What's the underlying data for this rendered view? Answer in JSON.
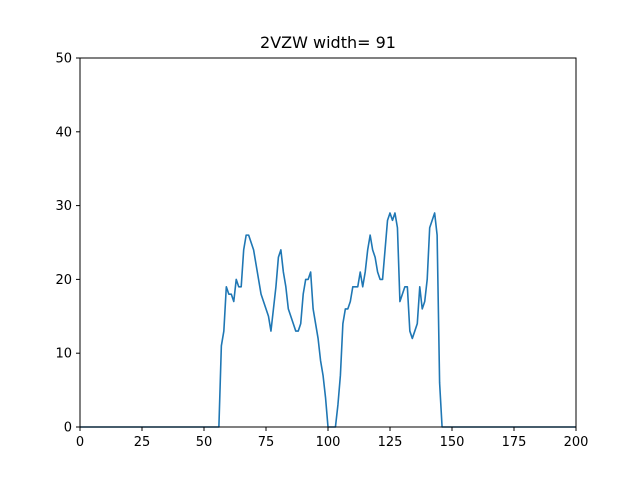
{
  "chart_data": {
    "type": "line",
    "title": "2VZW width= 91",
    "xlabel": "",
    "ylabel": "",
    "xlim": [
      0,
      200
    ],
    "ylim": [
      0,
      50
    ],
    "x_ticks": [
      0,
      25,
      50,
      75,
      100,
      125,
      150,
      175,
      200
    ],
    "y_ticks": [
      0,
      10,
      20,
      30,
      40,
      50
    ],
    "grid": false,
    "series": [
      {
        "color": "#1f77b4",
        "points": [
          [
            0,
            0
          ],
          [
            56,
            0
          ],
          [
            57,
            11
          ],
          [
            58,
            13
          ],
          [
            59,
            19
          ],
          [
            60,
            18
          ],
          [
            61,
            18
          ],
          [
            62,
            17
          ],
          [
            63,
            20
          ],
          [
            64,
            19
          ],
          [
            65,
            19
          ],
          [
            66,
            24
          ],
          [
            67,
            26
          ],
          [
            68,
            26
          ],
          [
            69,
            25
          ],
          [
            70,
            24
          ],
          [
            71,
            22
          ],
          [
            72,
            20
          ],
          [
            73,
            18
          ],
          [
            74,
            17
          ],
          [
            75,
            16
          ],
          [
            76,
            15
          ],
          [
            77,
            13
          ],
          [
            78,
            16
          ],
          [
            79,
            19
          ],
          [
            80,
            23
          ],
          [
            81,
            24
          ],
          [
            82,
            21
          ],
          [
            83,
            19
          ],
          [
            84,
            16
          ],
          [
            85,
            15
          ],
          [
            86,
            14
          ],
          [
            87,
            13
          ],
          [
            88,
            13
          ],
          [
            89,
            14
          ],
          [
            90,
            18
          ],
          [
            91,
            20
          ],
          [
            92,
            20
          ],
          [
            93,
            21
          ],
          [
            94,
            16
          ],
          [
            95,
            14
          ],
          [
            96,
            12
          ],
          [
            97,
            9
          ],
          [
            98,
            7
          ],
          [
            99,
            4
          ],
          [
            100,
            0
          ],
          [
            103,
            0
          ],
          [
            104,
            3
          ],
          [
            105,
            7
          ],
          [
            106,
            14
          ],
          [
            107,
            16
          ],
          [
            108,
            16
          ],
          [
            109,
            17
          ],
          [
            110,
            19
          ],
          [
            111,
            19
          ],
          [
            112,
            19
          ],
          [
            113,
            21
          ],
          [
            114,
            19
          ],
          [
            115,
            21
          ],
          [
            116,
            24
          ],
          [
            117,
            26
          ],
          [
            118,
            24
          ],
          [
            119,
            23
          ],
          [
            120,
            21
          ],
          [
            121,
            20
          ],
          [
            122,
            20
          ],
          [
            123,
            24
          ],
          [
            124,
            28
          ],
          [
            125,
            29
          ],
          [
            126,
            28
          ],
          [
            127,
            29
          ],
          [
            128,
            27
          ],
          [
            129,
            17
          ],
          [
            130,
            18
          ],
          [
            131,
            19
          ],
          [
            132,
            19
          ],
          [
            133,
            13
          ],
          [
            134,
            12
          ],
          [
            135,
            13
          ],
          [
            136,
            14
          ],
          [
            137,
            19
          ],
          [
            138,
            16
          ],
          [
            139,
            17
          ],
          [
            140,
            20
          ],
          [
            141,
            27
          ],
          [
            142,
            28
          ],
          [
            143,
            29
          ],
          [
            144,
            26
          ],
          [
            145,
            6
          ],
          [
            146,
            0
          ],
          [
            200,
            0
          ]
        ]
      }
    ]
  }
}
